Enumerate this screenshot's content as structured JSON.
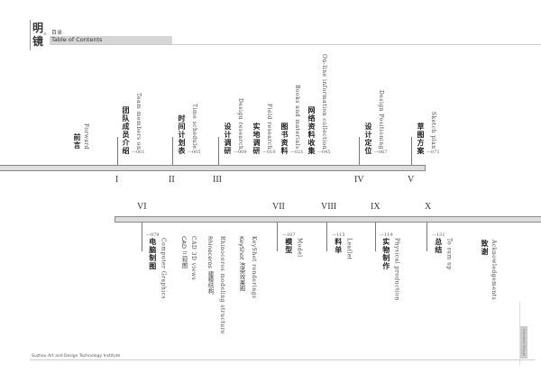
{
  "header": {
    "logo_chars": [
      "明",
      "镜"
    ],
    "logo_small": "©",
    "title_cn": "目录",
    "title_en": "Table of Contents"
  },
  "top_items": [
    {
      "en": "Forward",
      "cn": "前言",
      "page": ""
    },
    {
      "en": "Team members on",
      "cn": "团队成员介绍",
      "page": "—001"
    },
    {
      "en": "Time schedule",
      "cn": "时间计划表",
      "page": "—005"
    },
    {
      "en": "Design research",
      "cn": "设计调研",
      "page": "—009"
    },
    {
      "en": "Field research",
      "cn": "实地调研",
      "page": "—010"
    },
    {
      "en": "Books and materials",
      "cn": "图书资料",
      "page": "—021"
    },
    {
      "en": "On-line information collection",
      "cn": "网络资料收集",
      "page": "—045"
    },
    {
      "en": "Design Positioning",
      "cn": "设计定位",
      "page": "—067"
    },
    {
      "en": "Sketch plan",
      "cn": "草图方案",
      "page": "—071"
    }
  ],
  "top_numerals": [
    "I",
    "II",
    "III",
    "IV",
    "V"
  ],
  "bottom_numerals": [
    "VI",
    "VII",
    "VIII",
    "IX",
    "X"
  ],
  "bottom_items": [
    {
      "en": "Computer Graphics",
      "cn": "电脑制图",
      "page": "—079"
    },
    {
      "en": "Model",
      "cn": "模型",
      "page": "—107"
    },
    {
      "en": "Leaflet",
      "cn": "料单",
      "page": "—115"
    },
    {
      "en": "Physical production",
      "cn": "实物制作",
      "page": "—119"
    },
    {
      "en": "To sum up",
      "cn": "总结",
      "page": "—131"
    },
    {
      "en": "Acknowledgements",
      "cn": "致谢",
      "page": ""
    }
  ],
  "sub_items": [
    {
      "text": "CAD 三视图"
    },
    {
      "text": "CAD 3D views"
    },
    {
      "text": "Rhinoceros 建模结构"
    },
    {
      "text": "Rhinoceros modeling structure"
    },
    {
      "text": "KeyShot 渲染效果图"
    },
    {
      "text": "KeyShot renderings"
    }
  ],
  "footer": {
    "institute": "Suzhou Art and Design Technology Institute",
    "tab": "Furniture design"
  }
}
